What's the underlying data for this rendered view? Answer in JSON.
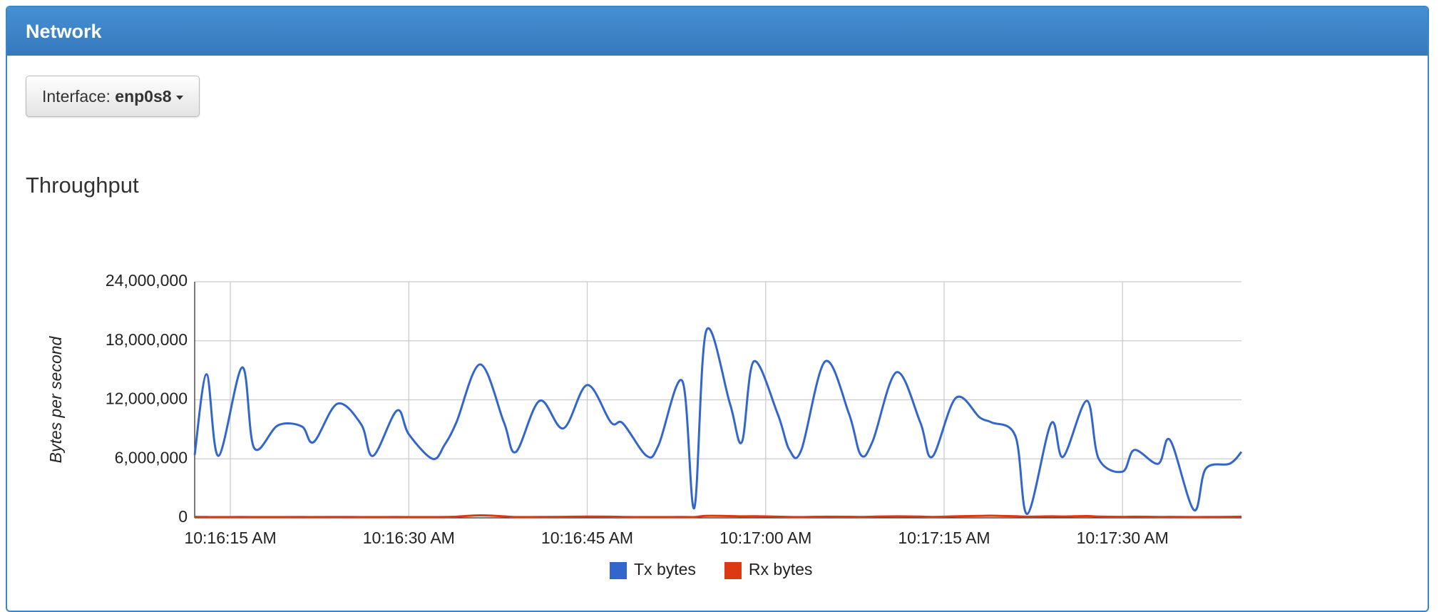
{
  "header": {
    "title": "Network"
  },
  "interface_button": {
    "label": "Interface:",
    "value": "enp0s8"
  },
  "section": {
    "title": "Throughput"
  },
  "chart_data": {
    "type": "line",
    "y_label": "Bytes per second",
    "x": [
      "10:16:12 AM",
      "10:16:13 AM",
      "10:16:14 AM",
      "10:16:16 AM",
      "10:16:17 AM",
      "10:16:19 AM",
      "10:16:21 AM",
      "10:16:22 AM",
      "10:16:24 AM",
      "10:16:26 AM",
      "10:16:27 AM",
      "10:16:29 AM",
      "10:16:30 AM",
      "10:16:32 AM",
      "10:16:33 AM",
      "10:16:34 AM",
      "10:16:36 AM",
      "10:16:38 AM",
      "10:16:39 AM",
      "10:16:41 AM",
      "10:16:43 AM",
      "10:16:45 AM",
      "10:16:47 AM",
      "10:16:48 AM",
      "10:16:50 AM",
      "10:16:51 AM",
      "10:16:53 AM",
      "10:16:54 AM",
      "10:16:55 AM",
      "10:16:57 AM",
      "10:16:58 AM",
      "10:16:59 AM",
      "10:17:01 AM",
      "10:17:02 AM",
      "10:17:03 AM",
      "10:17:05 AM",
      "10:17:07 AM",
      "10:17:08 AM",
      "10:17:09 AM",
      "10:17:11 AM",
      "10:17:13 AM",
      "10:17:14 AM",
      "10:17:16 AM",
      "10:17:18 AM",
      "10:17:19 AM",
      "10:17:21 AM",
      "10:17:22 AM",
      "10:17:24 AM",
      "10:17:25 AM",
      "10:17:27 AM",
      "10:17:28 AM",
      "10:17:30 AM",
      "10:17:31 AM",
      "10:17:33 AM",
      "10:17:34 AM",
      "10:17:36 AM",
      "10:17:37 AM",
      "10:17:39 AM",
      "10:17:40 AM"
    ],
    "series": [
      {
        "name": "Tx bytes",
        "color": "#3366cc",
        "values": [
          6400000,
          14600000,
          6300000,
          15300000,
          7100000,
          9400000,
          9300000,
          7700000,
          11600000,
          9500000,
          6300000,
          10900000,
          8500000,
          6000000,
          7400000,
          9700000,
          15600000,
          9700000,
          6700000,
          11900000,
          9100000,
          13500000,
          9700000,
          9600000,
          6300000,
          7400000,
          13900000,
          1000000,
          19000000,
          11600000,
          7700000,
          15900000,
          10600000,
          6900000,
          6900000,
          15900000,
          10600000,
          6400000,
          7800000,
          14800000,
          9700000,
          6200000,
          12200000,
          10200000,
          9700000,
          8300000,
          400000,
          9600000,
          6200000,
          11900000,
          6000000,
          4700000,
          6900000,
          5500000,
          7900000,
          800000,
          5000000,
          5500000,
          6700000
        ]
      },
      {
        "name": "Rx bytes",
        "color": "#dc3912",
        "values": [
          100000,
          90000,
          80000,
          90000,
          80000,
          80000,
          90000,
          80000,
          90000,
          80000,
          80000,
          90000,
          80000,
          80000,
          90000,
          120000,
          250000,
          150000,
          80000,
          90000,
          100000,
          130000,
          120000,
          90000,
          80000,
          80000,
          90000,
          80000,
          200000,
          180000,
          150000,
          160000,
          120000,
          90000,
          80000,
          120000,
          110000,
          90000,
          120000,
          150000,
          130000,
          90000,
          150000,
          200000,
          220000,
          160000,
          120000,
          150000,
          140000,
          180000,
          130000,
          100000,
          120000,
          90000,
          100000,
          80000,
          90000,
          100000,
          120000
        ]
      }
    ],
    "xlim": [
      "10:16:12 AM",
      "10:17:40 AM"
    ],
    "xticks": [
      "10:16:15 AM",
      "10:16:30 AM",
      "10:16:45 AM",
      "10:17:00 AM",
      "10:17:15 AM",
      "10:17:30 AM"
    ],
    "ylim": [
      0,
      24000000
    ],
    "yticks": [
      {
        "value": 0,
        "label": "0"
      },
      {
        "value": 6000000,
        "label": "6,000,000"
      },
      {
        "value": 12000000,
        "label": "12,000,000"
      },
      {
        "value": 18000000,
        "label": "18,000,000"
      },
      {
        "value": 24000000,
        "label": "24,000,000"
      }
    ],
    "grid": true,
    "legend": "bottom"
  }
}
